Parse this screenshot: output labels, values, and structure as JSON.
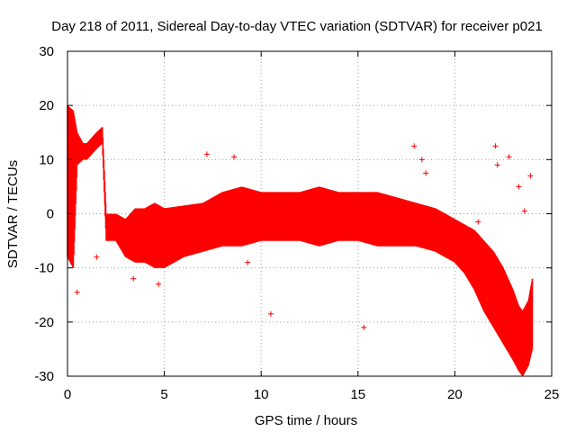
{
  "chart_data": {
    "type": "scatter",
    "title": "Day 218 of 2011, Sidereal Day-to-day VTEC variation (SDTVAR) for receiver p021",
    "xlabel": "GPS time / hours",
    "ylabel": "SDTVAR / TECUs",
    "xlim": [
      0,
      25
    ],
    "ylim": [
      -30,
      30
    ],
    "xticks": [
      0,
      5,
      10,
      15,
      20,
      25
    ],
    "yticks": [
      -30,
      -20,
      -10,
      0,
      10,
      20,
      30
    ],
    "grid": true,
    "marker": "+",
    "color": "#ff0000",
    "envelope": {
      "x": [
        0.0,
        0.3,
        0.5,
        0.8,
        1.0,
        1.5,
        1.8,
        2.0,
        2.5,
        3.0,
        3.5,
        4.0,
        4.5,
        5.0,
        6.0,
        7.0,
        8.0,
        9.0,
        10.0,
        11.0,
        12.0,
        13.0,
        14.0,
        15.0,
        16.0,
        17.0,
        18.0,
        19.0,
        19.5,
        20.0,
        20.5,
        21.0,
        21.5,
        22.0,
        22.5,
        23.0,
        23.3,
        23.5,
        23.8,
        24.0
      ],
      "upper": [
        20.0,
        19.0,
        15.0,
        13.0,
        13.0,
        15.0,
        16.0,
        0.0,
        0.0,
        -1.0,
        1.0,
        1.0,
        2.0,
        1.0,
        1.5,
        2.0,
        4.0,
        5.0,
        4.0,
        4.0,
        4.0,
        5.0,
        4.0,
        4.0,
        4.0,
        3.0,
        2.0,
        1.0,
        0.0,
        -1.0,
        -2.0,
        -3.0,
        -5.0,
        -7.0,
        -10.0,
        -14.0,
        -17.0,
        -18.0,
        -16.0,
        -12.0
      ],
      "lower": [
        -8.0,
        -10.0,
        9.0,
        10.0,
        10.0,
        12.0,
        13.0,
        -5.0,
        -5.0,
        -8.0,
        -9.0,
        -9.0,
        -10.0,
        -10.0,
        -8.0,
        -7.0,
        -6.0,
        -6.0,
        -5.0,
        -5.0,
        -5.0,
        -6.0,
        -5.0,
        -5.0,
        -6.0,
        -6.0,
        -6.0,
        -7.0,
        -8.0,
        -9.0,
        -11.0,
        -14.0,
        -18.0,
        -21.0,
        -24.0,
        -27.0,
        -29.0,
        -30.0,
        -28.0,
        -25.0
      ]
    },
    "outliers": [
      {
        "x": 7.2,
        "y": 11.0
      },
      {
        "x": 8.6,
        "y": 10.5
      },
      {
        "x": 10.5,
        "y": -18.5
      },
      {
        "x": 15.3,
        "y": -21.0
      },
      {
        "x": 17.9,
        "y": 12.5
      },
      {
        "x": 18.3,
        "y": 10.0
      },
      {
        "x": 18.5,
        "y": 7.5
      },
      {
        "x": 22.1,
        "y": 12.5
      },
      {
        "x": 22.2,
        "y": 9.0
      },
      {
        "x": 22.8,
        "y": 10.5
      },
      {
        "x": 0.5,
        "y": -14.5
      },
      {
        "x": 1.5,
        "y": -8.0
      },
      {
        "x": 3.4,
        "y": -12.0
      },
      {
        "x": 4.7,
        "y": -13.0
      },
      {
        "x": 9.3,
        "y": -9.0
      },
      {
        "x": 23.3,
        "y": 5.0
      },
      {
        "x": 23.6,
        "y": 0.5
      },
      {
        "x": 23.9,
        "y": 7.0
      },
      {
        "x": 21.2,
        "y": -1.5
      },
      {
        "x": 20.8,
        "y": -3.0
      }
    ]
  }
}
